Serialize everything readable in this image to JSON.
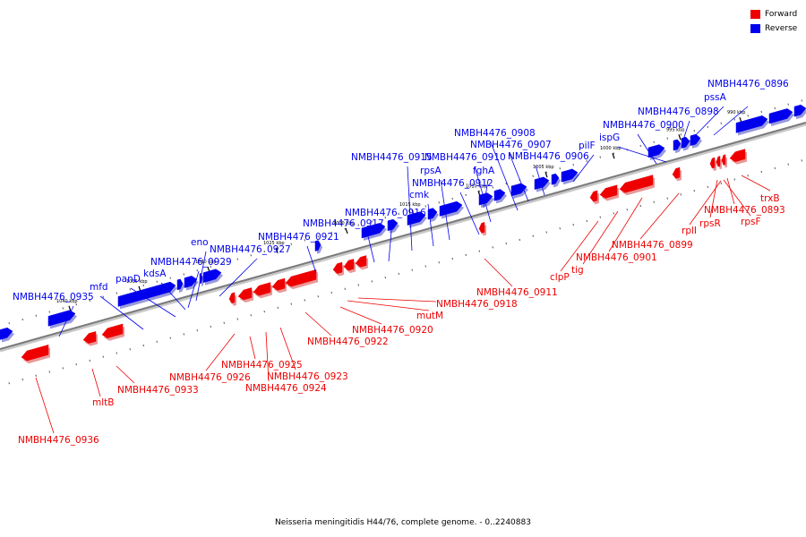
{
  "legend": {
    "forward_label": "Forward",
    "reverse_label": "Reverse",
    "forward_color": "#ee0000",
    "reverse_color": "#0000ee"
  },
  "caption": "Neisseria meningitidis H44/76, complete genome. - 0..2240883",
  "scale_ticks": [
    "990 kbp",
    "995 kbp",
    "1000 kbp",
    "1005 kbp",
    "1010 kbp",
    "1015 kbp",
    "1020 kbp",
    "1025 kbp",
    "1030 kbp",
    "1035 kbp",
    "1040 kbp"
  ],
  "reverse_labels": [
    "NMBH4476_0896",
    "pssA",
    "NMBH4476_0898",
    "NMBH4476_0900",
    "ispG",
    "pilF",
    "NMBH4476_0906",
    "NMBH4476_0907",
    "NMBH4476_0908",
    "fghA",
    "NMBH4476_0910",
    "NMBH4476_0912",
    "rpsA",
    "cmk",
    "NMBH4476_0915",
    "NMBH4476_0916",
    "NMBH4476_0917",
    "NMBH4476_0921",
    "NMBH4476_0927",
    "eno",
    "NMBH4476_0929",
    "kdsA",
    "panD",
    "mfd",
    "NMBH4476_0935"
  ],
  "forward_labels": [
    "trxB",
    "NMBH4476_0893",
    "rpsF",
    "rpsR",
    "rplI",
    "NMBH4476_0899",
    "NMBH4476_0901",
    "tig",
    "clpP",
    "NMBH4476_0911",
    "NMBH4476_0918",
    "mutM",
    "NMBH4476_0920",
    "NMBH4476_0922",
    "NMBH4476_0923",
    "NMBH4476_0924",
    "NMBH4476_0925",
    "NMBH4476_0926",
    "NMBH4476_0933",
    "mltB",
    "NMBH4476_0936"
  ]
}
